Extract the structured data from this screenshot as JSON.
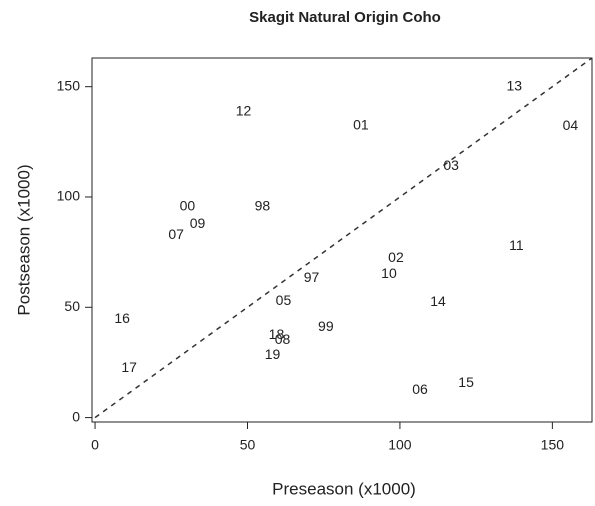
{
  "chart_data": {
    "type": "scatter",
    "title": "Skagit Natural Origin Coho",
    "x_label": "Preseason (x1000)",
    "y_label": "Postseason (x1000)",
    "labels": [
      "12",
      "01",
      "13",
      "04",
      "03",
      "00",
      "98",
      "09",
      "07",
      "11",
      "02",
      "10",
      "97",
      "05",
      "14",
      "16",
      "99",
      "18",
      "08",
      "19",
      "17",
      "15",
      "06"
    ],
    "x": [
      48.7,
      87.2,
      137.5,
      155.9,
      116.8,
      30.3,
      54.9,
      33.6,
      26.6,
      138.2,
      98.7,
      96.4,
      71,
      61.8,
      112.5,
      8.9,
      75.7,
      59.5,
      61.5,
      58.2,
      11.2,
      121.7,
      106.6
    ],
    "y": [
      138.6,
      132.3,
      150,
      132,
      114,
      95.5,
      95.5,
      87.7,
      82.7,
      77.7,
      72.3,
      65,
      63.2,
      52.7,
      52.3,
      44.5,
      40.9,
      37.3,
      35,
      28.2,
      22.3,
      15.5,
      12.3
    ],
    "color": "#222222",
    "xlim": [
      -1,
      163
    ],
    "ylim": [
      -2,
      163
    ],
    "xticks": [
      0,
      50,
      100,
      150
    ],
    "yticks": [
      0,
      50,
      100,
      150
    ]
  }
}
